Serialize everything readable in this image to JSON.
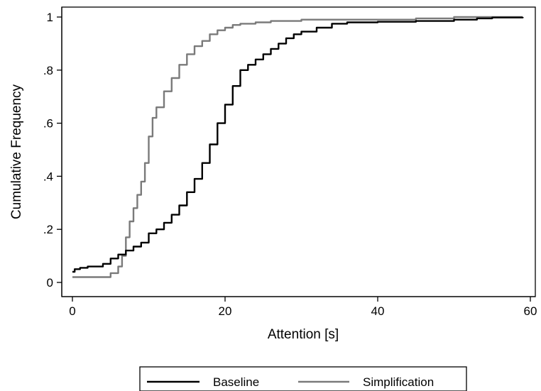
{
  "chart_data": {
    "type": "line",
    "title": "",
    "xlabel": "Attention [s]",
    "ylabel": "Cumulative Frequency",
    "xlim": [
      0,
      60
    ],
    "ylim": [
      0,
      1
    ],
    "x_ticks": [
      0,
      20,
      40,
      60
    ],
    "x_tick_labels": [
      "0",
      "20",
      "40",
      "60"
    ],
    "y_ticks": [
      0,
      0.2,
      0.4,
      0.6,
      0.8,
      1
    ],
    "y_tick_labels": [
      "0",
      ".2",
      ".4",
      ".6",
      ".8",
      "1"
    ],
    "grid": false,
    "legend": {
      "position": "bottom",
      "entries": [
        "Baseline",
        "Simplification"
      ]
    },
    "series": [
      {
        "name": "Baseline",
        "color": "#000000",
        "points": [
          [
            0,
            0.04
          ],
          [
            0.3,
            0.05
          ],
          [
            1,
            0.055
          ],
          [
            2,
            0.06
          ],
          [
            3,
            0.06
          ],
          [
            4,
            0.07
          ],
          [
            5,
            0.09
          ],
          [
            6,
            0.105
          ],
          [
            7,
            0.12
          ],
          [
            8,
            0.135
          ],
          [
            9,
            0.15
          ],
          [
            10,
            0.185
          ],
          [
            11,
            0.2
          ],
          [
            12,
            0.225
          ],
          [
            13,
            0.255
          ],
          [
            14,
            0.29
          ],
          [
            15,
            0.34
          ],
          [
            16,
            0.39
          ],
          [
            17,
            0.45
          ],
          [
            18,
            0.52
          ],
          [
            19,
            0.6
          ],
          [
            20,
            0.67
          ],
          [
            21,
            0.74
          ],
          [
            22,
            0.8
          ],
          [
            23,
            0.82
          ],
          [
            24,
            0.84
          ],
          [
            25,
            0.86
          ],
          [
            26,
            0.88
          ],
          [
            27,
            0.9
          ],
          [
            28,
            0.92
          ],
          [
            29,
            0.935
          ],
          [
            30,
            0.945
          ],
          [
            32,
            0.96
          ],
          [
            34,
            0.975
          ],
          [
            36,
            0.98
          ],
          [
            40,
            0.982
          ],
          [
            45,
            0.985
          ],
          [
            50,
            0.99
          ],
          [
            53,
            0.995
          ],
          [
            55,
            0.998
          ],
          [
            59,
            1.0
          ]
        ]
      },
      {
        "name": "Simplification",
        "color": "#7a7a7a",
        "points": [
          [
            0,
            0.02
          ],
          [
            2,
            0.02
          ],
          [
            4,
            0.02
          ],
          [
            5,
            0.035
          ],
          [
            6,
            0.06
          ],
          [
            6.5,
            0.1
          ],
          [
            7,
            0.17
          ],
          [
            7.5,
            0.23
          ],
          [
            8,
            0.28
          ],
          [
            8.5,
            0.33
          ],
          [
            9,
            0.38
          ],
          [
            9.5,
            0.45
          ],
          [
            10,
            0.55
          ],
          [
            10.5,
            0.62
          ],
          [
            11,
            0.66
          ],
          [
            12,
            0.72
          ],
          [
            13,
            0.77
          ],
          [
            14,
            0.82
          ],
          [
            15,
            0.86
          ],
          [
            16,
            0.89
          ],
          [
            17,
            0.91
          ],
          [
            18,
            0.935
          ],
          [
            19,
            0.95
          ],
          [
            20,
            0.96
          ],
          [
            21,
            0.97
          ],
          [
            22,
            0.975
          ],
          [
            24,
            0.98
          ],
          [
            26,
            0.985
          ],
          [
            30,
            0.99
          ],
          [
            40,
            0.99
          ],
          [
            45,
            0.995
          ],
          [
            50,
            1.0
          ],
          [
            59,
            1.0
          ]
        ]
      }
    ]
  }
}
